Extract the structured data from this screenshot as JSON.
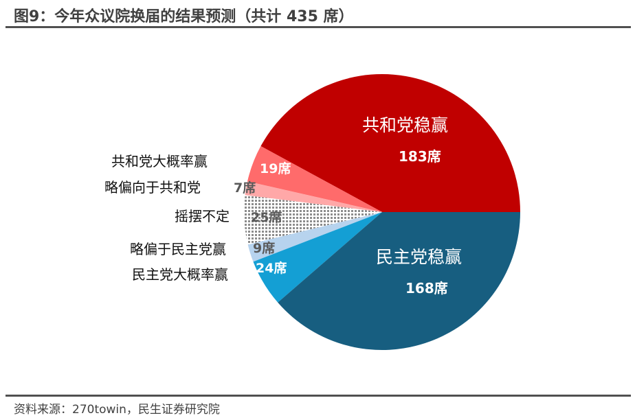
{
  "title": "图9：今年众议院换届的结果预测（共计 435 席）",
  "source": "资料来源：270towin，民生证券研究院",
  "chart_data": {
    "type": "pie",
    "title": "今年众议院换届的结果预测（共计 435 席）",
    "total": 435,
    "unit": "席",
    "start_angle_deg": 0,
    "direction": "counterclockwise from 3 o'clock",
    "slices": [
      {
        "name": "共和党稳赢",
        "value": 183,
        "label": "183席",
        "color": "#C00000"
      },
      {
        "name": "共和党大概率赢",
        "value": 19,
        "label": "19席",
        "color": "#FF6B6B"
      },
      {
        "name": "略偏向于共和党",
        "value": 7,
        "label": "7席",
        "color": "#FFA8A8"
      },
      {
        "name": "摇摆不定",
        "value": 25,
        "label": "25席",
        "color": "dotted-gray"
      },
      {
        "name": "略偏于民主党赢",
        "value": 9,
        "label": "9席",
        "color": "#B7D3EE"
      },
      {
        "name": "民主党大概率赢",
        "value": 24,
        "label": "24席",
        "color": "#149FD4"
      },
      {
        "name": "民主党稳赢",
        "value": 168,
        "label": "168席",
        "color": "#175E80"
      }
    ]
  },
  "labels": {
    "rep_safe": "共和党稳赢",
    "rep_safe_val": "183席",
    "rep_likely": "共和党大概率赢",
    "rep_likely_val": "19席",
    "rep_lean": "略偏向于共和党",
    "rep_lean_val": "7席",
    "tossup": "摇摆不定",
    "tossup_val": "25席",
    "dem_lean": "略偏于民主党赢",
    "dem_lean_val": "9席",
    "dem_likely": "民主党大概率赢",
    "dem_likely_val": "24席",
    "dem_safe": "民主党稳赢",
    "dem_safe_val": "168席"
  }
}
